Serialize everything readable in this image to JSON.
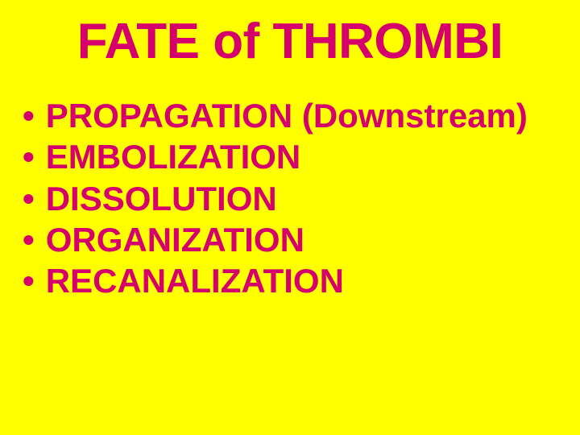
{
  "slide": {
    "background_color": "#ffff00",
    "title": {
      "text": "FATE of THROMBI",
      "color": "#d6006c",
      "fontsize": 62
    },
    "bullets": {
      "color": "#d6006c",
      "fontsize": 42,
      "items": [
        "PROPAGATION (Downstream)",
        "EMBOLIZATION",
        "DISSOLUTION",
        "ORGANIZATION",
        "RECANALIZATION"
      ]
    }
  }
}
